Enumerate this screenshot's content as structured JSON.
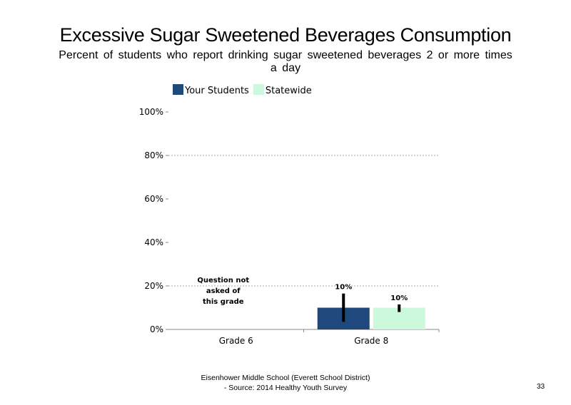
{
  "page": {
    "title": "Excessive Sugar Sweetened Beverages Consumption",
    "subtitle": "Percent of students who report drinking sugar sweetened beverages 2 or more times a day",
    "footer_line1": "Eisenhower Middle School (Everett School District)",
    "footer_line2": "- Source: 2014 Healthy Youth Survey",
    "page_number": "33"
  },
  "chart_data": {
    "type": "bar",
    "title": "",
    "xlabel": "",
    "ylabel": "",
    "categories": [
      "Grade 6",
      "Grade 8"
    ],
    "series": [
      {
        "name": "Your Students",
        "color": "#1f497d",
        "values": [
          null,
          10
        ],
        "error_low": [
          null,
          3.5
        ],
        "error_high": [
          null,
          16.5
        ],
        "labels": [
          "",
          "10%"
        ]
      },
      {
        "name": "Statewide",
        "color": "#ccf8dc",
        "values": [
          null,
          10
        ],
        "error_low": [
          null,
          8
        ],
        "error_high": [
          null,
          11.5
        ],
        "labels": [
          "",
          "10%"
        ]
      }
    ],
    "ylim": [
      0,
      100
    ],
    "yticks": [
      0,
      20,
      40,
      60,
      80,
      100
    ],
    "ytick_labels": [
      "0%",
      "20%",
      "40%",
      "60%",
      "80%",
      "100%"
    ],
    "gridlines": [
      20,
      80
    ],
    "grid_style": "dotted",
    "legend_position": "top-left",
    "annotations": [
      {
        "category": "Grade 6",
        "text_lines": [
          "Question not",
          "asked of",
          "this grade"
        ]
      }
    ]
  }
}
